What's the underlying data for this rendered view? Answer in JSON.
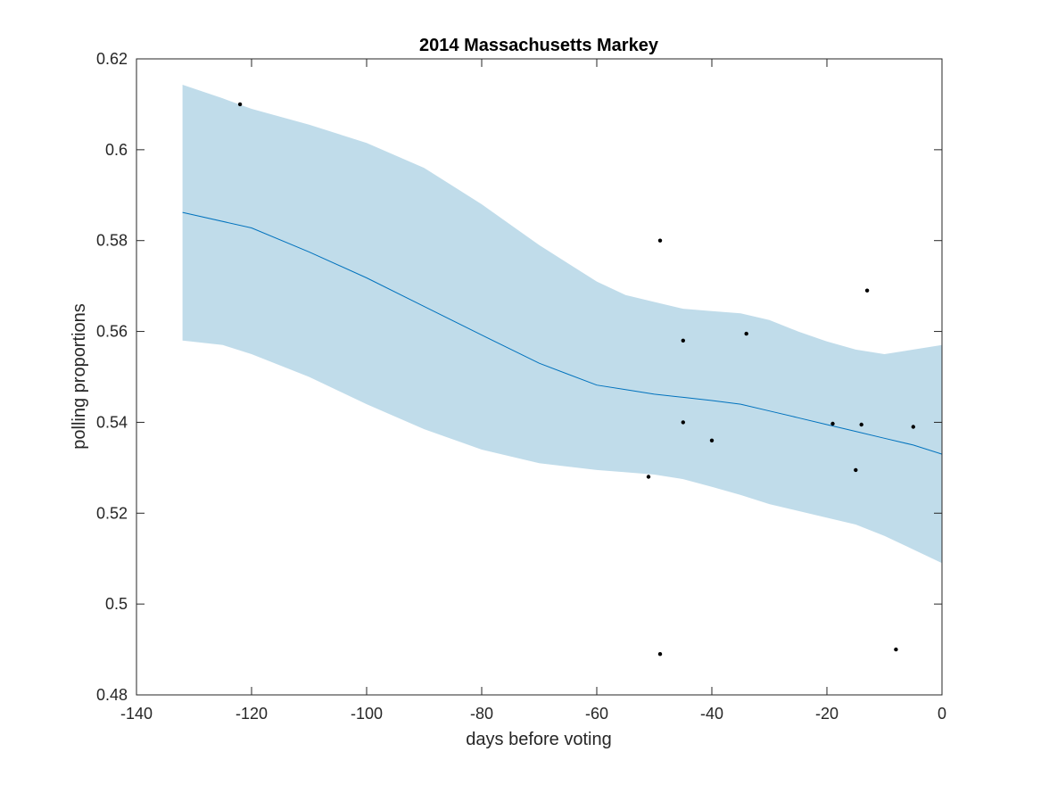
{
  "chart_data": {
    "type": "scatter",
    "title": "2014 Massachusetts Markey",
    "xlabel": "days before voting",
    "ylabel": "polling proportions",
    "xlim": [
      -140,
      0
    ],
    "ylim": [
      0.48,
      0.62
    ],
    "xticks": [
      -140,
      -120,
      -100,
      -80,
      -60,
      -40,
      -20,
      0
    ],
    "xtick_labels": [
      "-140",
      "-120",
      "-100",
      "-80",
      "-60",
      "-40",
      "-20",
      "0"
    ],
    "yticks": [
      0.48,
      0.5,
      0.52,
      0.54,
      0.56,
      0.58,
      0.6,
      0.62
    ],
    "ytick_labels": [
      "0.48",
      "0.5",
      "0.52",
      "0.54",
      "0.56",
      "0.58",
      "0.6",
      "0.62"
    ],
    "grid": false,
    "series": [
      {
        "kind": "points",
        "color": "#000000",
        "points": [
          {
            "x": -122,
            "y": 0.61
          },
          {
            "x": -51,
            "y": 0.528
          },
          {
            "x": -49,
            "y": 0.58
          },
          {
            "x": -49,
            "y": 0.489
          },
          {
            "x": -45,
            "y": 0.558
          },
          {
            "x": -45,
            "y": 0.54
          },
          {
            "x": -40,
            "y": 0.536
          },
          {
            "x": -34,
            "y": 0.5595
          },
          {
            "x": -19,
            "y": 0.5397
          },
          {
            "x": -15,
            "y": 0.5295
          },
          {
            "x": -14,
            "y": 0.5395
          },
          {
            "x": -13,
            "y": 0.569
          },
          {
            "x": -8,
            "y": 0.49
          },
          {
            "x": -5,
            "y": 0.539
          }
        ]
      },
      {
        "kind": "fit-line",
        "color": "#0072bd",
        "x": [
          -132,
          -120,
          -110,
          -100,
          -90,
          -80,
          -70,
          -60,
          -55,
          -50,
          -45,
          -40,
          -35,
          -30,
          -25,
          -20,
          -15,
          -10,
          -5,
          0
        ],
        "y": [
          0.5862,
          0.5828,
          0.5775,
          0.5718,
          0.5655,
          0.5592,
          0.553,
          0.5482,
          0.5472,
          0.5462,
          0.5455,
          0.5448,
          0.544,
          0.5425,
          0.541,
          0.5395,
          0.538,
          0.5365,
          0.535,
          0.533
        ]
      },
      {
        "kind": "confidence-band",
        "color": "#c0dcea",
        "x": [
          -132,
          -125,
          -120,
          -110,
          -100,
          -90,
          -80,
          -70,
          -60,
          -55,
          -50,
          -45,
          -40,
          -35,
          -30,
          -25,
          -20,
          -15,
          -10,
          -5,
          0
        ],
        "upper": [
          0.6143,
          0.6113,
          0.609,
          0.6055,
          0.6015,
          0.596,
          0.588,
          0.579,
          0.571,
          0.568,
          0.5665,
          0.565,
          0.5645,
          0.564,
          0.5625,
          0.56,
          0.5578,
          0.556,
          0.555,
          0.556,
          0.557
        ],
        "lower": [
          0.558,
          0.557,
          0.555,
          0.55,
          0.544,
          0.5385,
          0.534,
          0.531,
          0.5295,
          0.529,
          0.5285,
          0.5275,
          0.5258,
          0.524,
          0.522,
          0.5205,
          0.519,
          0.5175,
          0.515,
          0.512,
          0.509
        ]
      }
    ]
  }
}
